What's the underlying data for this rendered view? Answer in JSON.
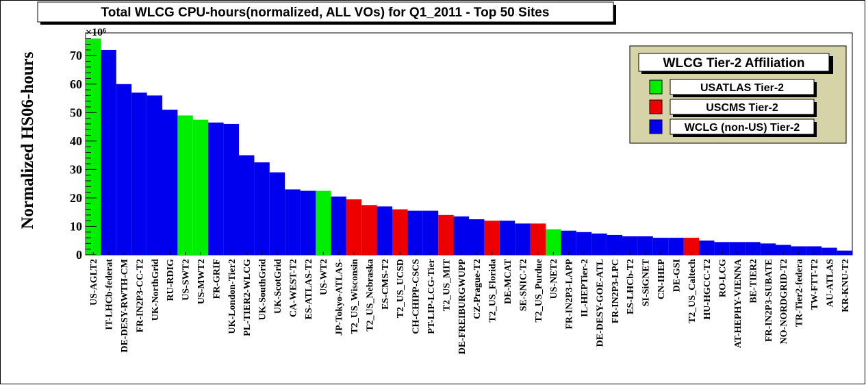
{
  "chart_data": {
    "type": "bar",
    "title": "Total WLCG CPU-hours(normalized, ALL VOs) for Q1_2011 - Top 50 Sites",
    "ylabel": "Normalized HS06-hours",
    "xlabel": "",
    "y_multiplier": "×10⁶",
    "ylim": [
      0,
      78
    ],
    "yticks": [
      "0",
      "10",
      "20",
      "30",
      "40",
      "50",
      "60",
      "70"
    ],
    "ytick_values": [
      0,
      10,
      20,
      30,
      40,
      50,
      60,
      70
    ],
    "grid": false,
    "legend_position": "top-right",
    "colors": {
      "USATLAS": "#00ee00",
      "USCMS": "#ee0000",
      "WLCG": "#0000ee"
    },
    "categories": [
      "US-AGLT2",
      "IT-LHCb-federat",
      "DE-DESY-RWTH-CM",
      "FR-IN2P3-CC-T2",
      "UK-NorthGrid",
      "RU-RDIG",
      "US-SWT2",
      "US-MWT2",
      "FR-GRIF",
      "UK-London-Tier2",
      "PL-TIER2-WLCG",
      "UK-SouthGrid",
      "UK-ScotGrid",
      "CA-WEST-T2",
      "ES-ATLAS-T2",
      "US-WT2",
      "JP-Tokyo-ATLAS-",
      "T2_US_Wisconsin",
      "T2_US_Nebraska",
      "ES-CMS-T2",
      "T2_US_UCSD",
      "CH-CHIPP-CSCS",
      "PT-LIP-LCG-Tier",
      "T2_US_MIT",
      "DE-FREIBURGWUPP",
      "CZ-Prague-T2",
      "T2_US_Florida",
      "DE-MCAT",
      "SE-SNIC-T2",
      "T2_US_Purdue",
      "US-NET2",
      "FR-IN2P3-LAPP",
      "IL-HEPTier-2",
      "DE-DESY-GOE-ATL",
      "FR-IN2P3-LPC",
      "ES-LHCb-T2",
      "SI-SiGNET",
      "CN-IHEP",
      "DE-GSI",
      "T2_US_Caltech",
      "HU-HGCC-T2",
      "RO-LCG",
      "AT-HEPHY-VIENNA",
      "BE-TIER2",
      "FR-IN2P3-SUBATE",
      "NO-NORDGRID-T2",
      "TR-Tier2-federa",
      "TW-FTT-T2",
      "AU-ATLAS",
      "KR-KNU-T2"
    ],
    "values": [
      76,
      72,
      60,
      57,
      56,
      51,
      49,
      47.5,
      46.5,
      46,
      35,
      32.5,
      29,
      23,
      22.5,
      22.5,
      20.5,
      19.5,
      17.5,
      17,
      16,
      15.5,
      15.5,
      14,
      13.5,
      12.5,
      12,
      12,
      11,
      11,
      9,
      8.5,
      8,
      7.5,
      7,
      6.5,
      6.5,
      6,
      6,
      6,
      5,
      4.5,
      4.5,
      4.5,
      4,
      3.5,
      3,
      3,
      2.5,
      1.5
    ],
    "affiliation": [
      "USATLAS",
      "WLCG",
      "WLCG",
      "WLCG",
      "WLCG",
      "WLCG",
      "USATLAS",
      "USATLAS",
      "WLCG",
      "WLCG",
      "WLCG",
      "WLCG",
      "WLCG",
      "WLCG",
      "WLCG",
      "USATLAS",
      "WLCG",
      "USCMS",
      "USCMS",
      "WLCG",
      "USCMS",
      "WLCG",
      "WLCG",
      "USCMS",
      "WLCG",
      "WLCG",
      "USCMS",
      "WLCG",
      "WLCG",
      "USCMS",
      "USATLAS",
      "WLCG",
      "WLCG",
      "WLCG",
      "WLCG",
      "WLCG",
      "WLCG",
      "WLCG",
      "WLCG",
      "USCMS",
      "WLCG",
      "WLCG",
      "WLCG",
      "WLCG",
      "WLCG",
      "WLCG",
      "WLCG",
      "WLCG",
      "WLCG",
      "WLCG"
    ]
  },
  "legend": {
    "title": "WLCG Tier-2 Affiliation",
    "items": [
      {
        "label": "USATLAS Tier-2",
        "key": "USATLAS"
      },
      {
        "label": "USCMS Tier-2",
        "key": "USCMS"
      },
      {
        "label": "WCLG (non-US) Tier-2",
        "key": "WLCG"
      }
    ]
  }
}
